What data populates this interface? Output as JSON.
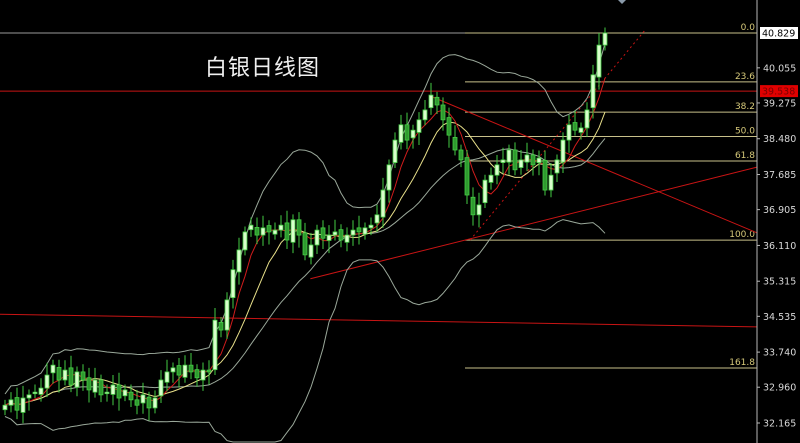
{
  "title": "白银日线图",
  "chart_data": {
    "type": "candlestick",
    "title": "白银日线图",
    "ylim": [
      32.165,
      40.829
    ],
    "y_ticks": [
      "40.055",
      "39.275",
      "38.480",
      "37.685",
      "36.905",
      "36.110",
      "35.315",
      "34.535",
      "33.740",
      "32.960",
      "32.165"
    ],
    "y_tick_values": [
      40.055,
      39.275,
      38.48,
      37.685,
      36.905,
      36.11,
      35.315,
      34.535,
      33.74,
      32.96,
      32.165
    ],
    "current_price": {
      "label": "40.829",
      "value": 40.829
    },
    "marked_price": {
      "label": "39.538",
      "value": 39.538,
      "color": "#e00000"
    },
    "closes": [
      32.56,
      32.68,
      32.45,
      32.72,
      32.79,
      32.85,
      32.94,
      33.23,
      33.45,
      33.12,
      33.34,
      33.01,
      33.3,
      33.12,
      32.9,
      33.12,
      32.79,
      32.85,
      33.01,
      32.72,
      32.9,
      32.68,
      32.56,
      32.79,
      32.5,
      32.72,
      33.12,
      33.3,
      33.39,
      33.23,
      33.45,
      33.3,
      33.17,
      33.34,
      33.3,
      34.45,
      34.23,
      34.9,
      35.57,
      36.01,
      36.41,
      36.56,
      36.34,
      36.5,
      36.41,
      36.45,
      36.56,
      36.23,
      36.68,
      36.34,
      35.9,
      36.12,
      36.45,
      36.27,
      36.34,
      36.41,
      36.23,
      36.34,
      36.45,
      36.41,
      36.5,
      36.56,
      36.79,
      37.34,
      37.9,
      38.45,
      38.79,
      38.45,
      38.67,
      38.9,
      39.12,
      39.45,
      39.23,
      38.9,
      38.56,
      38.23,
      38.01,
      37.23,
      36.79,
      37.01,
      37.56,
      37.67,
      37.9,
      38.01,
      38.23,
      37.79,
      38.01,
      38.12,
      37.9,
      38.05,
      37.34,
      37.67,
      38.01,
      38.45,
      38.79,
      38.67,
      38.72,
      39.12,
      39.9,
      40.56,
      40.83
    ],
    "fibonacci": [
      {
        "label": "0.0",
        "value": 40.829
      },
      {
        "label": "23.6",
        "value": 39.743
      },
      {
        "label": "38.2",
        "value": 39.072
      },
      {
        "label": "50.0",
        "value": 38.529
      },
      {
        "label": "61.8",
        "value": 37.986
      },
      {
        "label": "100.0",
        "value": 36.229
      },
      {
        "label": "161.8",
        "value": 33.386
      }
    ],
    "horizontal_lines": [
      {
        "value": 39.538,
        "color": "#c81414"
      }
    ],
    "trend_lines": [
      {
        "from": [
          0,
          34.58
        ],
        "to": [
          1,
          34.3
        ],
        "color": "#c81414"
      },
      {
        "from": [
          0.41,
          35.37
        ],
        "to": [
          1,
          37.85
        ],
        "color": "#c81414"
      },
      {
        "from": [
          0.571,
          39.41
        ],
        "to": [
          1,
          36.39
        ],
        "color": "#c81414"
      },
      {
        "from": [
          0.621,
          36.23
        ],
        "to": [
          0.852,
          40.89
        ],
        "color": "#c81414",
        "style": "dotted"
      }
    ],
    "indicators": [
      "MA5",
      "MA10",
      "Bollinger(20)"
    ],
    "colors": {
      "up": "#d9ffcc",
      "down": "#2f9a2f",
      "wick": "#44cc44",
      "ma5": "#d01c1c",
      "ma10": "#e8e08a",
      "bands": "#9aa89a",
      "fib": "#c8c08a"
    }
  }
}
